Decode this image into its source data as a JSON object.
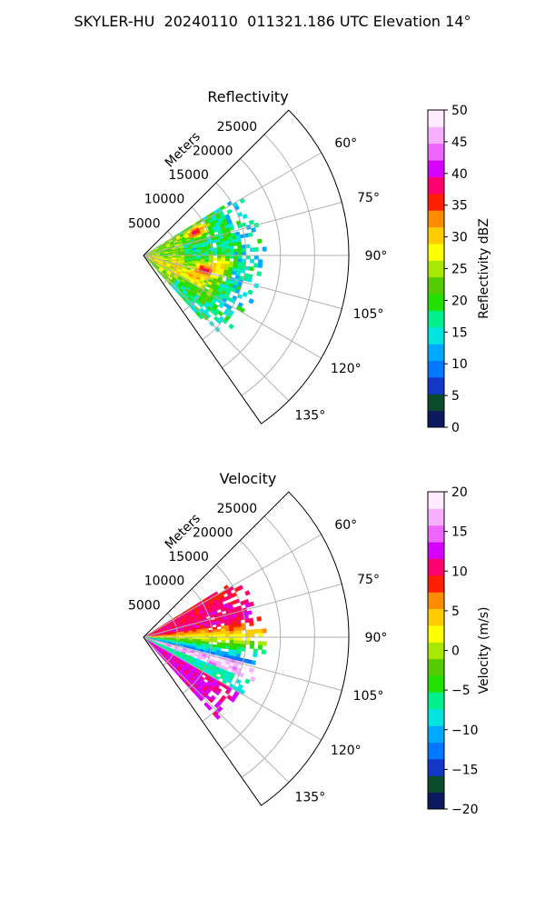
{
  "figure_title": "SKYLER-HU  20240110  011321.186 UTC Elevation 14°",
  "chart_data": [
    {
      "type": "heatmap",
      "subtype": "radar-ppi-sector",
      "title": "Reflectivity",
      "radial_axis_label": "Meters",
      "radial_ticks": [
        5000,
        10000,
        15000,
        20000,
        25000
      ],
      "radial_tick_labels": [
        "5000",
        "10000",
        "15000",
        "20000",
        "25000"
      ],
      "rlim": [
        0,
        30000
      ],
      "angle_range_deg": [
        45,
        145
      ],
      "angle_ticks_deg": [
        60,
        75,
        90,
        105,
        120,
        135
      ],
      "angle_tick_labels": [
        "60°",
        "75°",
        "90°",
        "105°",
        "120°",
        "135°"
      ],
      "grid": true,
      "data_extent_m": 18000,
      "colorbar": {
        "label": "Reflectivity dBZ",
        "range": [
          0,
          50
        ],
        "ticks": [
          0,
          5,
          10,
          15,
          20,
          25,
          30,
          35,
          40,
          45,
          50
        ],
        "tick_labels": [
          "0",
          "5",
          "10",
          "15",
          "20",
          "25",
          "30",
          "35",
          "40",
          "45",
          "50"
        ],
        "colors": [
          "#0b1a5e",
          "#0c4a2c",
          "#1236c8",
          "#0077ff",
          "#00a9ff",
          "#00e5e0",
          "#00f08c",
          "#22e000",
          "#55cc00",
          "#a6e800",
          "#ffff00",
          "#ffcc00",
          "#ff8c00",
          "#ff1e00",
          "#ff006e",
          "#d500ff",
          "#ee66ff",
          "#f7b0ff",
          "#ffeaff"
        ]
      },
      "features": [
        {
          "angle_deg": 65,
          "range_m": 8000,
          "value": 38
        },
        {
          "angle_deg": 103,
          "range_m": 9000,
          "value": 38
        },
        {
          "angle_deg": 112,
          "range_m": 7500,
          "value": 33
        },
        {
          "angle_deg": 95,
          "range_m": 11000,
          "value": 30
        }
      ]
    },
    {
      "type": "heatmap",
      "subtype": "radar-ppi-sector",
      "title": "Velocity",
      "radial_axis_label": "Meters",
      "radial_ticks": [
        5000,
        10000,
        15000,
        20000,
        25000
      ],
      "radial_tick_labels": [
        "5000",
        "10000",
        "15000",
        "20000",
        "25000"
      ],
      "rlim": [
        0,
        30000
      ],
      "angle_range_deg": [
        45,
        145
      ],
      "angle_ticks_deg": [
        60,
        75,
        90,
        105,
        120,
        135
      ],
      "angle_tick_labels": [
        "60°",
        "75°",
        "90°",
        "105°",
        "120°",
        "135°"
      ],
      "grid": true,
      "data_extent_m": 18000,
      "colorbar": {
        "label": "Velocity (m/s)",
        "range": [
          -20,
          20
        ],
        "ticks": [
          -20,
          -15,
          -10,
          -5,
          0,
          5,
          10,
          15,
          20
        ],
        "tick_labels": [
          "−20",
          "−15",
          "−10",
          "−5",
          "0",
          "5",
          "10",
          "15",
          "20"
        ],
        "colors": [
          "#0b1a5e",
          "#0c4a2c",
          "#1236c8",
          "#0077ff",
          "#00a9ff",
          "#00e5e0",
          "#00f08c",
          "#22e000",
          "#55cc00",
          "#a6e800",
          "#ffff00",
          "#ffcc00",
          "#ff8c00",
          "#ff1e00",
          "#ff006e",
          "#d500ff",
          "#ee66ff",
          "#f7b0ff",
          "#ffeaff"
        ]
      },
      "features": [
        {
          "angle_deg": 70,
          "range_m": 10000,
          "value": 11
        },
        {
          "angle_deg": 90,
          "range_m": 8000,
          "value": 2
        },
        {
          "angle_deg": 100,
          "range_m": 9000,
          "value": -12
        },
        {
          "angle_deg": 110,
          "range_m": 9000,
          "value": 16
        },
        {
          "angle_deg": 125,
          "range_m": 10000,
          "value": 12
        }
      ]
    }
  ]
}
